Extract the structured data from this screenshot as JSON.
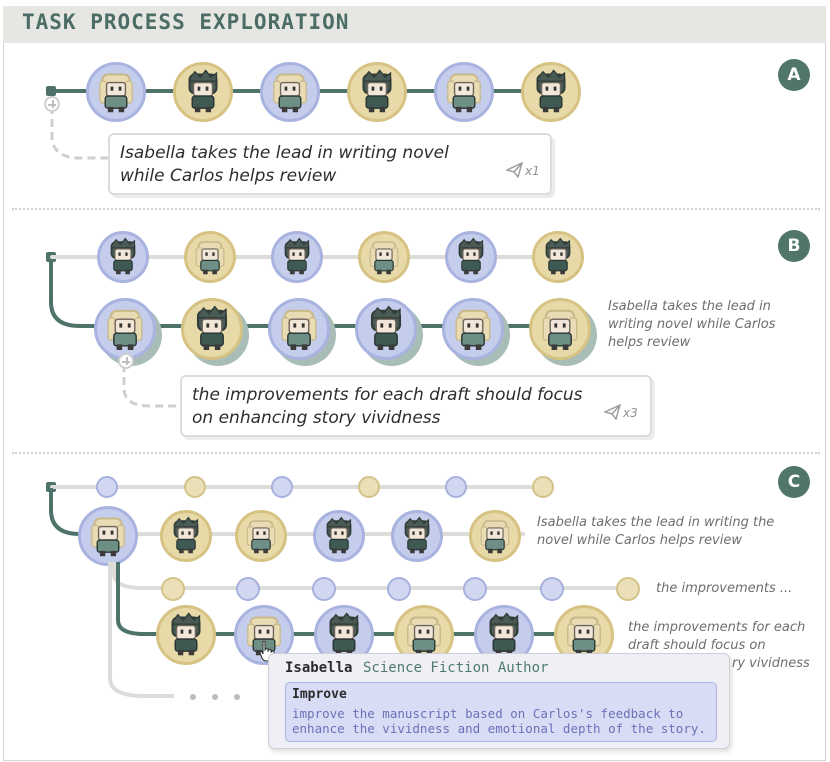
{
  "title": "TASK PROCESS EXPLORATION",
  "sections": [
    {
      "badge": "A",
      "message": [
        "Isabella takes the lead in writing novel",
        "while Carlos helps review"
      ],
      "send_count": "x1"
    },
    {
      "badge": "B",
      "message": [
        "the improvements for each draft should focus",
        "on enhancing story vividness"
      ],
      "send_count": "x3",
      "side_note": [
        "Isabella takes the lead in",
        "writing novel while Carlos",
        "helps review"
      ]
    },
    {
      "badge": "C",
      "side_note_1": [
        "Isabella takes the lead in writing the",
        "novel while Carlos helps review"
      ],
      "side_note_2": "the improvements ...",
      "side_note_3": [
        "the improvements for each",
        "draft should focus on",
        "ry vividness"
      ]
    }
  ],
  "tooltip": {
    "name": "Isabella",
    "role": "Science Fiction Author",
    "action": "Improve",
    "description": [
      "improve the manuscript based on Carlos's feedback to",
      "enhance the vividness and emotional depth of the story."
    ]
  },
  "agents": {
    "Isabella": {
      "color": "blue",
      "icon": "blonde-girl-avatar-icon"
    },
    "Carlos": {
      "color": "yellow",
      "icon": "dark-haired-boy-avatar-icon"
    }
  },
  "colors": {
    "accent": "#50766c",
    "agent_blue": "#c5cdec",
    "agent_yellow": "#e8d9a8",
    "timeline": "#4d736b"
  }
}
